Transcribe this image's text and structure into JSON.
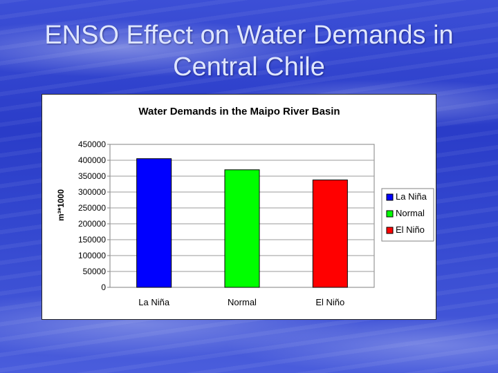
{
  "slide": {
    "title_line1": "ENSO Effect on Water Demands in",
    "title_line2": "Central Chile"
  },
  "chart_data": {
    "type": "bar",
    "title": "Water Demands in the Maipo River Basin",
    "ylabel": "m³*1000",
    "xlabel": "",
    "categories": [
      "La Niña",
      "Normal",
      "El Niño"
    ],
    "values": [
      405000,
      370000,
      338000
    ],
    "colors": [
      "#0000ff",
      "#00ff00",
      "#ff0000"
    ],
    "ylim": [
      0,
      450000
    ],
    "yticks": [
      "0",
      "50000",
      "100000",
      "150000",
      "200000",
      "250000",
      "300000",
      "350000",
      "400000",
      "450000"
    ],
    "grid": true,
    "legend": {
      "placement": "right",
      "entries": [
        "La Niña",
        "Normal",
        "El Niño"
      ]
    }
  }
}
